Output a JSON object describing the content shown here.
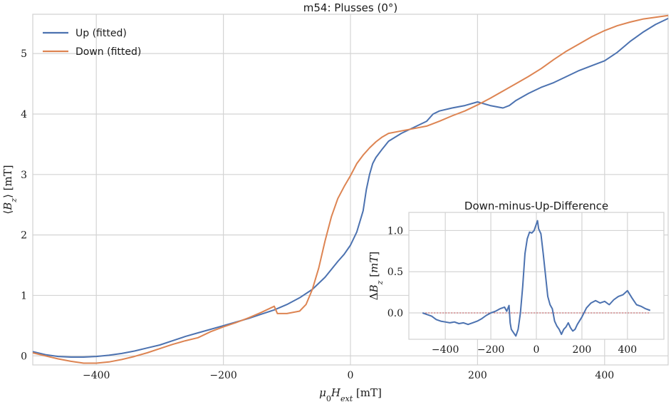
{
  "chart_data": [
    {
      "type": "line",
      "title": "m54: Plusses (0°)",
      "xlabel": "μ0Hext [mT]",
      "ylabel": "⟨Bz⟩ [mT]",
      "xlim": [
        -500,
        500
      ],
      "ylim": [
        -0.15,
        5.65
      ],
      "xticks": [
        -400,
        -200,
        0,
        200,
        400
      ],
      "yticks": [
        0,
        1,
        2,
        3,
        4,
        5
      ],
      "xtick_labels": [
        "−400",
        "−200",
        "0",
        "200",
        "400"
      ],
      "ytick_labels": [
        "0",
        "1",
        "2",
        "3",
        "4",
        "5"
      ],
      "grid": true,
      "legend": "top-left",
      "series": [
        {
          "name": "Up (fitted)",
          "color": "#4c72b0",
          "x": [
            -500,
            -480,
            -460,
            -440,
            -420,
            -400,
            -380,
            -360,
            -340,
            -320,
            -300,
            -280,
            -260,
            -240,
            -220,
            -200,
            -180,
            -160,
            -140,
            -120,
            -100,
            -80,
            -60,
            -40,
            -30,
            -20,
            -10,
            0,
            10,
            20,
            25,
            30,
            35,
            40,
            50,
            60,
            80,
            100,
            120,
            130,
            140,
            160,
            180,
            200,
            220,
            240,
            250,
            260,
            280,
            300,
            320,
            340,
            360,
            380,
            400,
            420,
            440,
            460,
            480,
            500
          ],
          "y": [
            0.07,
            0.02,
            -0.01,
            -0.02,
            -0.02,
            -0.01,
            0.01,
            0.04,
            0.08,
            0.13,
            0.18,
            0.25,
            0.32,
            0.38,
            0.44,
            0.5,
            0.56,
            0.62,
            0.69,
            0.76,
            0.85,
            0.96,
            1.1,
            1.3,
            1.43,
            1.56,
            1.68,
            1.83,
            2.05,
            2.4,
            2.75,
            3.0,
            3.18,
            3.28,
            3.42,
            3.55,
            3.68,
            3.78,
            3.88,
            4.0,
            4.05,
            4.1,
            4.14,
            4.2,
            4.14,
            4.1,
            4.14,
            4.22,
            4.34,
            4.44,
            4.52,
            4.62,
            4.72,
            4.8,
            4.88,
            5.02,
            5.2,
            5.35,
            5.48,
            5.58
          ]
        },
        {
          "name": "Down (fitted)",
          "color": "#dd8452",
          "x": [
            -500,
            -480,
            -460,
            -440,
            -420,
            -400,
            -380,
            -360,
            -340,
            -320,
            -300,
            -280,
            -260,
            -240,
            -220,
            -200,
            -180,
            -160,
            -140,
            -120,
            -115,
            -100,
            -80,
            -70,
            -60,
            -50,
            -40,
            -30,
            -20,
            -10,
            0,
            10,
            20,
            30,
            40,
            50,
            60,
            80,
            100,
            120,
            140,
            160,
            180,
            200,
            220,
            240,
            260,
            280,
            300,
            320,
            340,
            360,
            380,
            400,
            420,
            440,
            460,
            480,
            500
          ],
          "y": [
            0.05,
            0.0,
            -0.05,
            -0.09,
            -0.12,
            -0.12,
            -0.1,
            -0.06,
            -0.01,
            0.05,
            0.12,
            0.19,
            0.25,
            0.3,
            0.4,
            0.48,
            0.55,
            0.63,
            0.72,
            0.82,
            0.7,
            0.7,
            0.74,
            0.85,
            1.1,
            1.45,
            1.9,
            2.3,
            2.6,
            2.8,
            2.98,
            3.18,
            3.32,
            3.44,
            3.54,
            3.62,
            3.68,
            3.72,
            3.76,
            3.8,
            3.88,
            3.97,
            4.05,
            4.15,
            4.26,
            4.38,
            4.5,
            4.62,
            4.75,
            4.9,
            5.04,
            5.16,
            5.28,
            5.38,
            5.46,
            5.52,
            5.57,
            5.6,
            5.63
          ]
        }
      ]
    },
    {
      "type": "line",
      "title": "Down-minus-Up-Difference",
      "xlabel": "",
      "ylabel": "ΔBz [mT]",
      "xlim": [
        -560,
        560
      ],
      "ylim": [
        -0.32,
        1.22
      ],
      "xticks": [
        -400,
        -200,
        0,
        200,
        400
      ],
      "yticks": [
        0.0,
        0.5,
        1.0
      ],
      "xtick_labels": [
        "−400",
        "−200",
        "0",
        "200",
        "400"
      ],
      "ytick_labels": [
        "0.0",
        "0.5",
        "1.0"
      ],
      "grid": true,
      "zero_line_color": "#c44e52",
      "series": [
        {
          "color": "#4c72b0",
          "x": [
            -500,
            -480,
            -460,
            -440,
            -420,
            -400,
            -380,
            -360,
            -340,
            -320,
            -300,
            -280,
            -260,
            -240,
            -220,
            -200,
            -180,
            -160,
            -140,
            -130,
            -120,
            -115,
            -110,
            -100,
            -90,
            -80,
            -70,
            -60,
            -50,
            -40,
            -30,
            -20,
            -10,
            0,
            5,
            10,
            20,
            30,
            40,
            50,
            60,
            70,
            80,
            90,
            100,
            110,
            120,
            130,
            140,
            150,
            160,
            170,
            180,
            200,
            220,
            240,
            260,
            280,
            300,
            320,
            340,
            360,
            380,
            400,
            420,
            440,
            460,
            480,
            500
          ],
          "y": [
            0.0,
            -0.02,
            -0.04,
            -0.08,
            -0.1,
            -0.11,
            -0.12,
            -0.11,
            -0.13,
            -0.12,
            -0.14,
            -0.12,
            -0.1,
            -0.07,
            -0.03,
            0.0,
            0.02,
            0.05,
            0.07,
            0.02,
            0.09,
            -0.12,
            -0.2,
            -0.24,
            -0.28,
            -0.2,
            0.0,
            0.32,
            0.72,
            0.9,
            0.98,
            0.97,
            1.0,
            1.08,
            1.12,
            1.02,
            0.96,
            0.72,
            0.46,
            0.2,
            0.1,
            0.05,
            -0.1,
            -0.16,
            -0.2,
            -0.26,
            -0.2,
            -0.17,
            -0.12,
            -0.18,
            -0.22,
            -0.2,
            -0.14,
            -0.05,
            0.06,
            0.12,
            0.15,
            0.12,
            0.14,
            0.1,
            0.16,
            0.2,
            0.22,
            0.27,
            0.18,
            0.1,
            0.08,
            0.05,
            0.03
          ]
        }
      ]
    }
  ]
}
